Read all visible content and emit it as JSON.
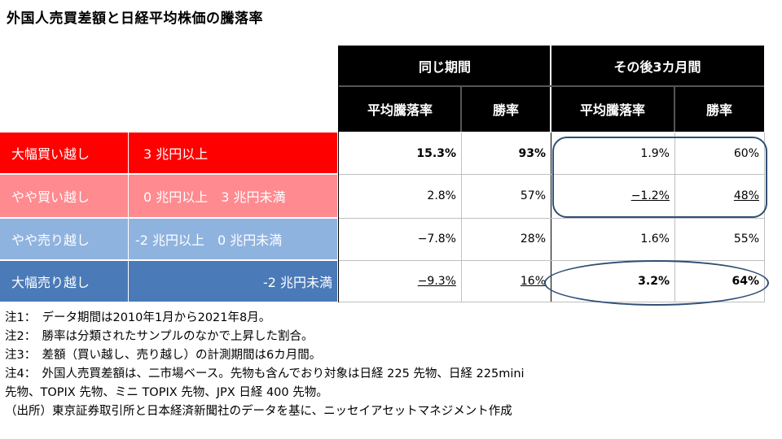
{
  "title": "外国人売買差額と日経平均株価の騰落率",
  "header": {
    "group_same": "同じ期間",
    "group_after": "その後3カ月間",
    "col_avg": "平均騰落率",
    "col_win": "勝率"
  },
  "rows": [
    {
      "category": "大幅買い越し",
      "range": "3 兆円以上",
      "same_avg": "15.3%",
      "same_win": "93%",
      "after_avg": "1.9%",
      "after_win": "60%",
      "color": "#ff0000"
    },
    {
      "category": "やや買い越し",
      "range": "0 兆円以上　3 兆円未満",
      "same_avg": "2.8%",
      "same_win": "57%",
      "after_avg": "−1.2%",
      "after_win": "48%",
      "color": "#ff8a8f"
    },
    {
      "category": "やや売り越し",
      "range": "-2 兆円以上　0 兆円未満",
      "same_avg": "−7.8%",
      "same_win": "28%",
      "after_avg": "1.6%",
      "after_win": "55%",
      "color": "#8fb3df"
    },
    {
      "category": "大幅売り越し",
      "range": "-2 兆円未満",
      "same_avg": "−9.3%",
      "same_win": "16%",
      "after_avg": "3.2%",
      "after_win": "64%",
      "color": "#4a7ab8"
    }
  ],
  "notes": [
    "注1：　データ期間は2010年1月から2021年8月。",
    "注2：　勝率は分類されたサンプルのなかで上昇した割合。",
    "注3：　差額（買い越し、売り越し）の計測期間は6カ月間。",
    "注4：　外国人売買差額は、二市場ベース。先物も含んでおり対象は日経 225 先物、日経 225mini",
    "先物、TOPIX 先物、ミニ TOPIX 先物、JPX 日経 400 先物。",
    "（出所）東京証券取引所と日本経済新聞社のデータを基に、ニッセイアセットマネジメント作成"
  ]
}
